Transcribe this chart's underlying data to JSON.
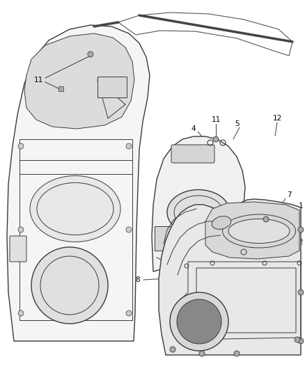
{
  "bg_color": "#ffffff",
  "line_color": "#3a3a3a",
  "figsize": [
    4.38,
    5.33
  ],
  "dpi": 100,
  "font_size": 7.5
}
